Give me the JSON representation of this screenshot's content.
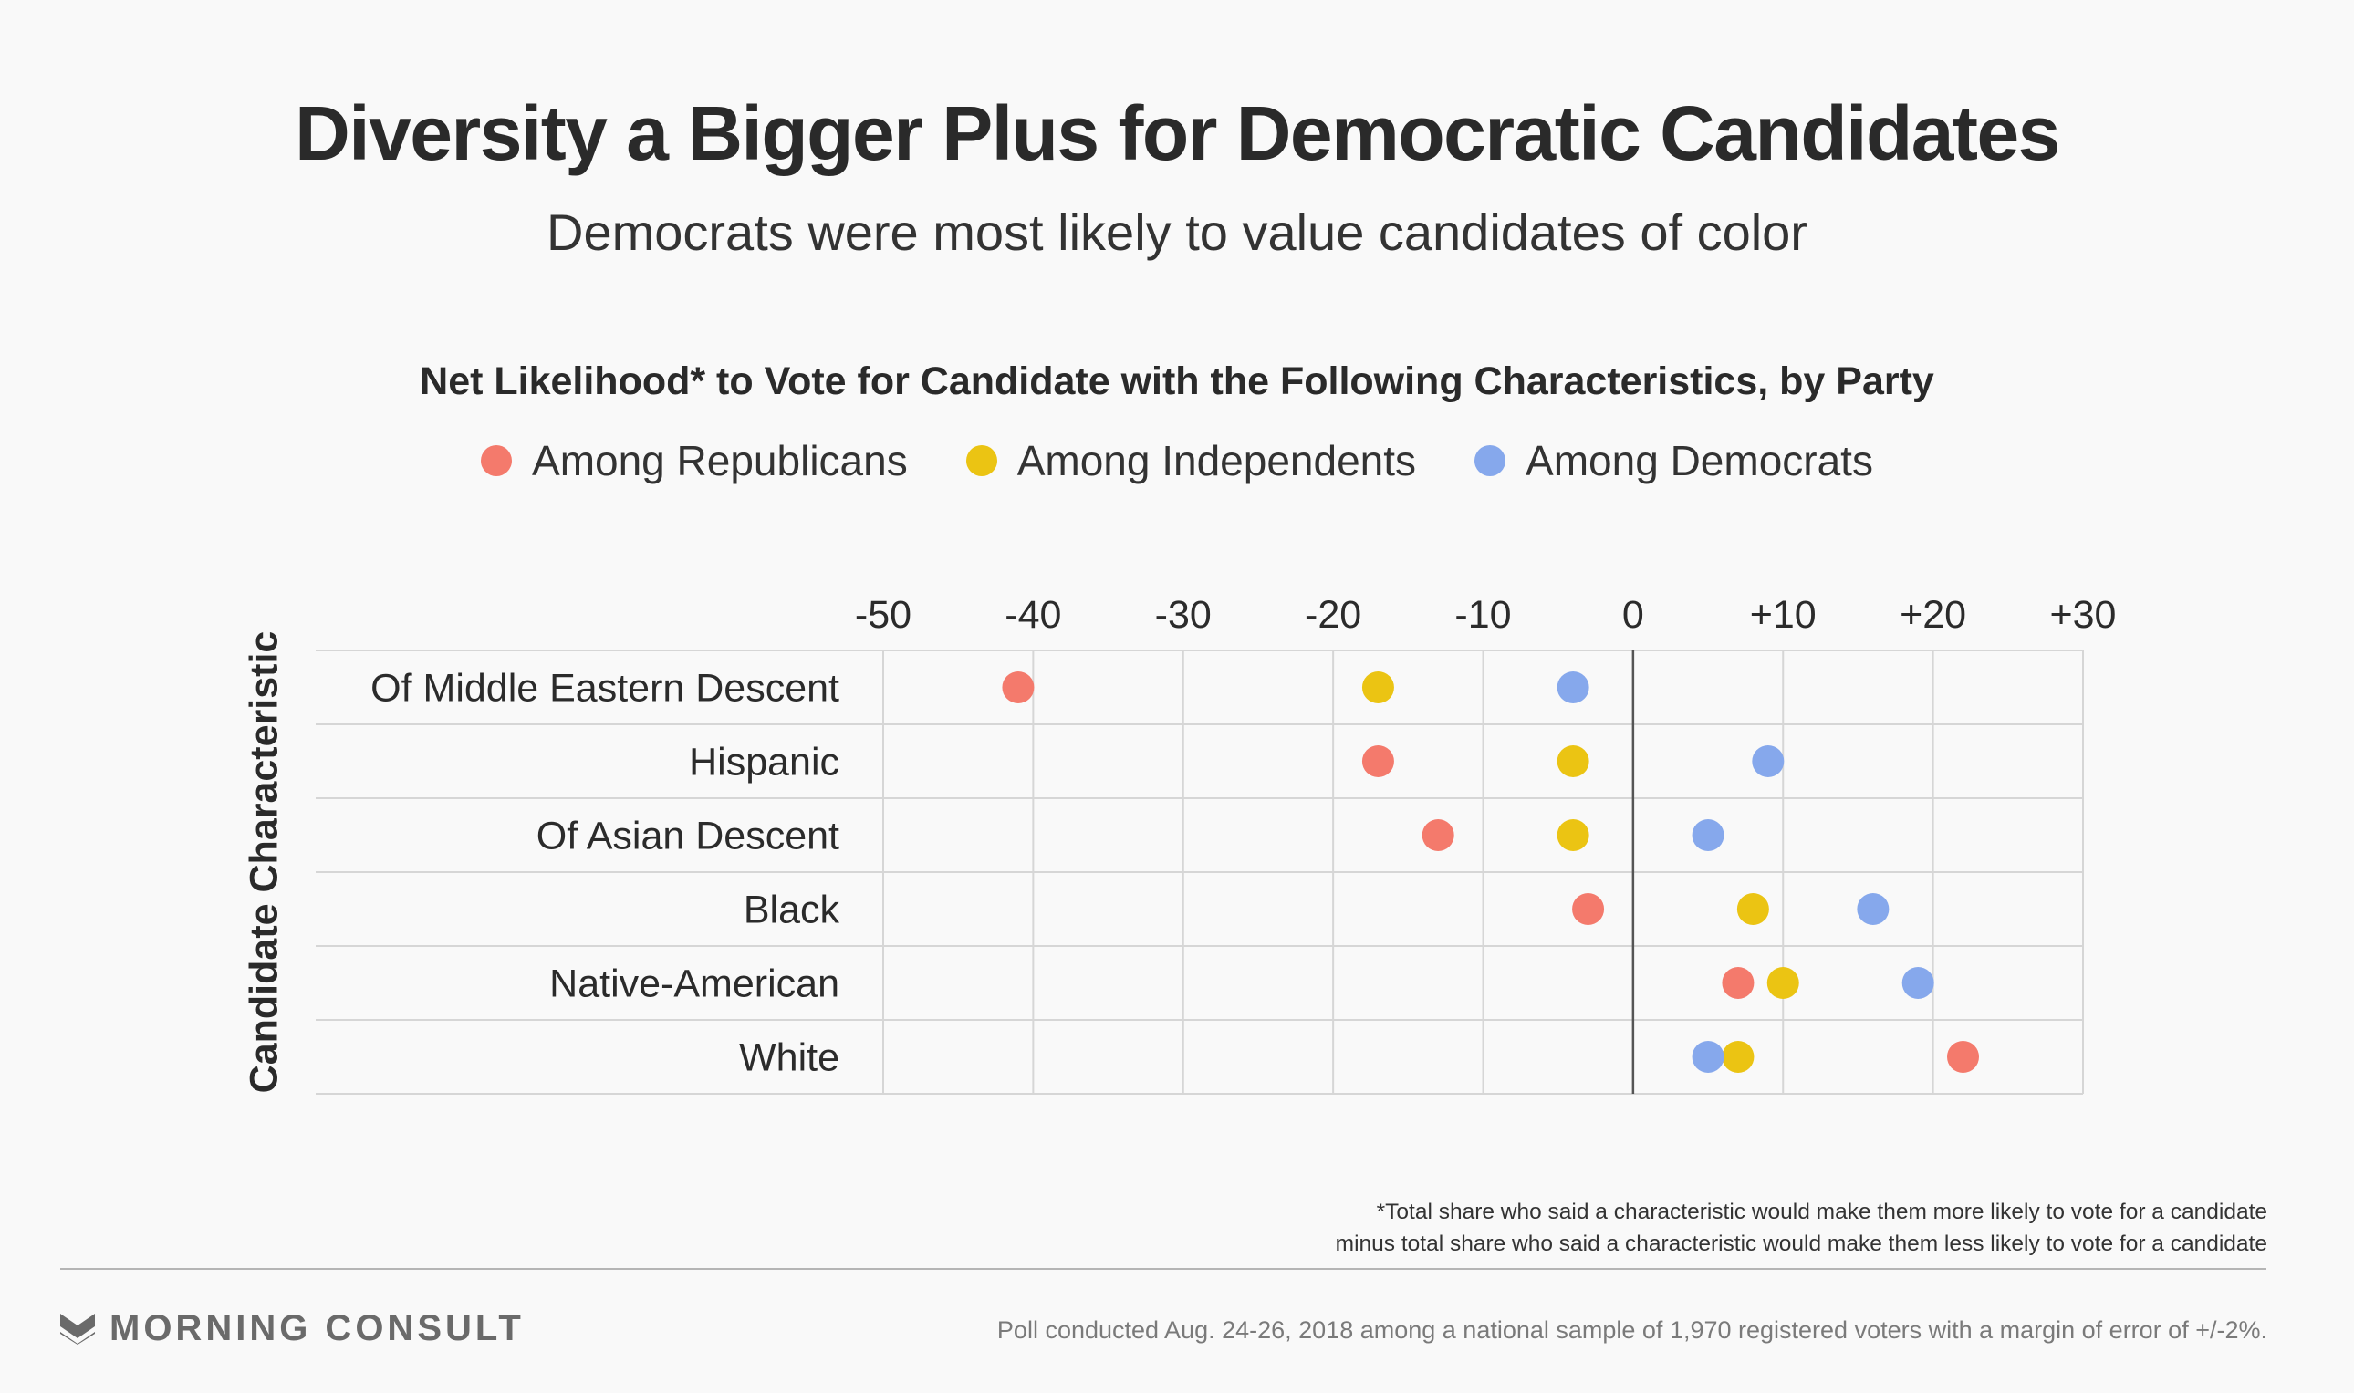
{
  "header": {
    "title": "Diversity a Bigger Plus for Democratic Candidates",
    "subtitle": "Democrats were most likely to value candidates of color"
  },
  "chart_data": {
    "type": "scatter",
    "title": "Net Likelihood* to Vote for Candidate with the Following Characteristics, by Party",
    "ylabel": "Candidate Characteristic",
    "xlabel": "",
    "xlim": [
      -50,
      30
    ],
    "x_ticks": [
      "-50",
      "-40",
      "-30",
      "-20",
      "-10",
      "0",
      "+10",
      "+20",
      "+30"
    ],
    "x_tick_values": [
      -50,
      -40,
      -30,
      -20,
      -10,
      0,
      10,
      20,
      30
    ],
    "categories": [
      "Of Middle Eastern Descent",
      "Hispanic",
      "Of Asian Descent",
      "Black",
      "Native-American",
      "White"
    ],
    "series": [
      {
        "name": "Among Republicans",
        "color": "#f47a6c",
        "values": [
          -41,
          -17,
          -13,
          -3,
          7,
          22
        ]
      },
      {
        "name": "Among Independents",
        "color": "#ebc413",
        "values": [
          -17,
          -4,
          -4,
          8,
          10,
          7
        ]
      },
      {
        "name": "Among Democrats",
        "color": "#86a8ec",
        "values": [
          -4,
          9,
          5,
          16,
          19,
          5
        ]
      }
    ],
    "grid": true,
    "legend_position": "top-center"
  },
  "footnote": {
    "line1": "*Total share who said a characteristic would make them more likely to vote for a candidate",
    "line2": "minus total share who said a characteristic would make them less likely to vote for a candidate"
  },
  "footer": {
    "brand": "MORNING CONSULT",
    "logo_icon": "morning-consult-chevron-icon",
    "source": "Poll conducted Aug. 24-26, 2018 among a national sample of 1,970 registered voters with a margin of error of +/-2%."
  }
}
